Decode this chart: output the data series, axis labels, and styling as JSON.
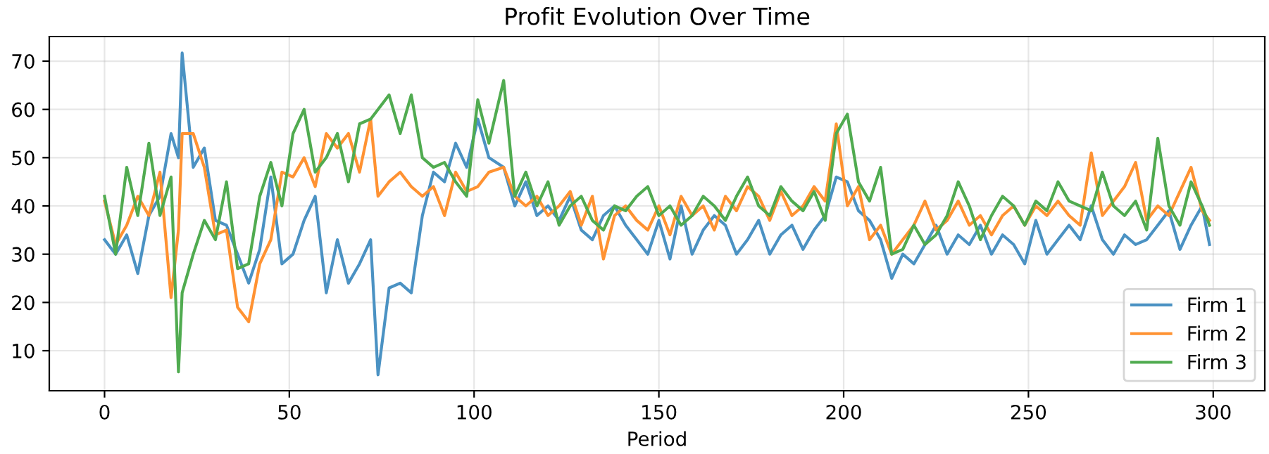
{
  "chart_data": {
    "type": "line",
    "title": "Profit Evolution Over Time",
    "xlabel": "Period",
    "x": [
      0,
      3,
      6,
      9,
      12,
      15,
      18,
      20,
      21,
      24,
      27,
      30,
      33,
      36,
      39,
      42,
      45,
      48,
      51,
      54,
      57,
      60,
      63,
      66,
      69,
      72,
      74,
      77,
      80,
      83,
      86,
      89,
      92,
      95,
      98,
      101,
      104,
      108,
      111,
      114,
      117,
      120,
      123,
      126,
      129,
      132,
      135,
      138,
      141,
      144,
      147,
      150,
      153,
      156,
      159,
      162,
      165,
      168,
      171,
      174,
      177,
      180,
      183,
      186,
      189,
      192,
      195,
      198,
      201,
      204,
      207,
      210,
      213,
      216,
      219,
      222,
      225,
      228,
      231,
      234,
      237,
      240,
      243,
      246,
      249,
      252,
      255,
      258,
      261,
      264,
      267,
      270,
      273,
      276,
      279,
      282,
      285,
      288,
      291,
      294,
      297,
      299
    ],
    "series": [
      {
        "name": "Firm 1",
        "color": "#4b92c3",
        "values": [
          33,
          30,
          34,
          26,
          38,
          42,
          55,
          50,
          71.7,
          48,
          52,
          37,
          36,
          30,
          24,
          31,
          46,
          28,
          30,
          37,
          42,
          22,
          33,
          24,
          28,
          33,
          5,
          23,
          24,
          22,
          38,
          47,
          45,
          53,
          48,
          58,
          50,
          48,
          40,
          45,
          38,
          40,
          37,
          42,
          35,
          33,
          38,
          40,
          36,
          33,
          30,
          37,
          29,
          40,
          30,
          35,
          38,
          36,
          30,
          33,
          37,
          30,
          34,
          36,
          31,
          35,
          38,
          46,
          45,
          39,
          37,
          33,
          25,
          30,
          28,
          32,
          36,
          30,
          34,
          32,
          36,
          30,
          34,
          32,
          28,
          37,
          30,
          33,
          36,
          33,
          40,
          33,
          30,
          34,
          32,
          33,
          36,
          39,
          31,
          36,
          40,
          32
        ]
      },
      {
        "name": "Firm 2",
        "color": "#ff9232",
        "values": [
          41,
          32,
          36,
          42,
          38,
          47,
          21,
          35,
          55,
          55,
          48,
          34,
          35,
          19,
          16,
          28,
          33,
          47,
          46,
          50,
          44,
          55,
          52,
          55,
          47,
          58,
          42,
          45,
          47,
          44,
          42,
          44,
          38,
          47,
          43,
          44,
          47,
          48,
          42,
          40,
          42,
          38,
          40,
          43,
          36,
          42,
          29,
          38,
          40,
          37,
          35,
          40,
          34,
          42,
          38,
          40,
          35,
          42,
          39,
          44,
          42,
          37,
          43,
          38,
          40,
          44,
          41,
          57,
          40,
          44,
          33,
          36,
          30,
          33,
          36,
          41,
          35,
          37,
          41,
          36,
          38,
          34,
          38,
          40,
          36,
          40,
          38,
          41,
          38,
          36,
          51,
          38,
          41,
          44,
          49,
          37,
          40,
          38,
          43,
          48,
          39,
          37
        ]
      },
      {
        "name": "Firm 3",
        "color": "#50ab50",
        "values": [
          42,
          30,
          48,
          38,
          53,
          38,
          46,
          5.6,
          22,
          30,
          37,
          33,
          45,
          27,
          28,
          42,
          49,
          40,
          55,
          60,
          47,
          50,
          55,
          45,
          57,
          58,
          60,
          63,
          55,
          63,
          50,
          48,
          49,
          45,
          42,
          62,
          53,
          66,
          42,
          47,
          40,
          45,
          36,
          40,
          42,
          37,
          35,
          40,
          39,
          42,
          44,
          38,
          40,
          36,
          38,
          42,
          40,
          37,
          42,
          46,
          40,
          38,
          44,
          41,
          39,
          43,
          37,
          55,
          59,
          45,
          41,
          48,
          30,
          31,
          36,
          32,
          34,
          38,
          45,
          40,
          33,
          38,
          42,
          40,
          36,
          41,
          39,
          45,
          41,
          40,
          39,
          47,
          40,
          38,
          41,
          35,
          54,
          40,
          36,
          45,
          40,
          36
        ]
      }
    ],
    "xlim": [
      -14.95,
      313.95
    ],
    "ylim": [
      1.7,
      75.1
    ],
    "xticks": [
      0,
      50,
      100,
      150,
      200,
      250,
      300
    ],
    "yticks": [
      10,
      20,
      30,
      40,
      50,
      60,
      70
    ],
    "grid": true,
    "legend": "bottom right",
    "marker": "none",
    "line_style": "solid"
  }
}
